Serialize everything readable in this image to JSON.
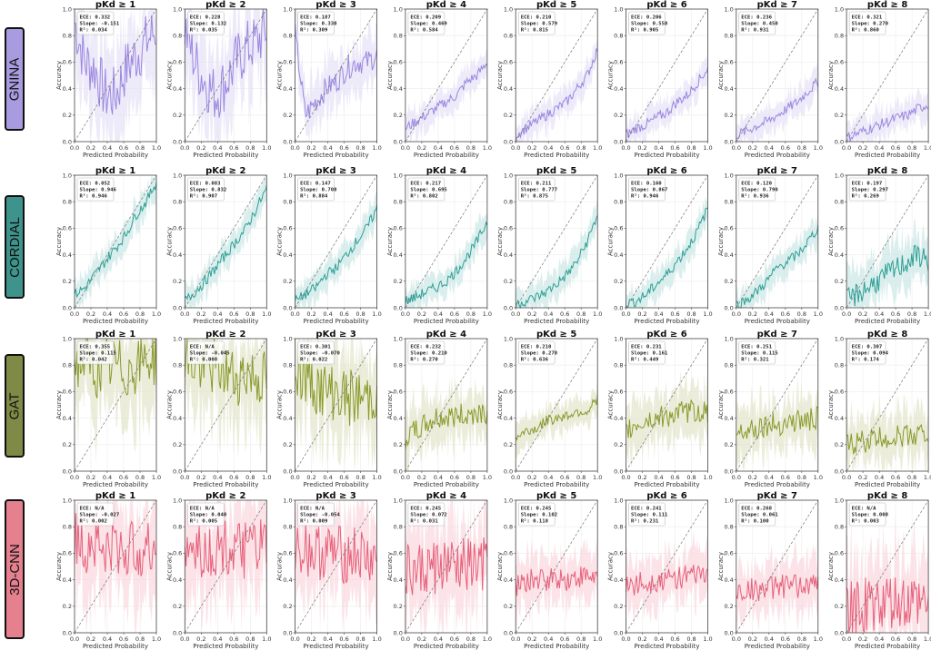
{
  "figure": {
    "xlabel": "Predicted Probability",
    "ylabel": "Accuracy",
    "xticks": [
      "0.0",
      "0.2",
      "0.4",
      "0.6",
      "0.8",
      "1.0"
    ],
    "yticks": [
      "0.0",
      "0.2",
      "0.4",
      "0.6",
      "0.8",
      "1.0"
    ],
    "columns": [
      "pKd ≥ 1",
      "pKd ≥ 2",
      "pKd ≥ 3",
      "pKd ≥ 4",
      "pKd ≥ 5",
      "pKd ≥ 6",
      "pKd ≥ 7",
      "pKd ≥ 8"
    ]
  },
  "rows": [
    {
      "model": "GNINA",
      "color": "#9b87e0",
      "label_bg": "#a99be0"
    },
    {
      "model": "CORDIAL",
      "color": "#2c9f95",
      "label_bg": "#3e948c"
    },
    {
      "model": "GAT",
      "color": "#8a9a2b",
      "label_bg": "#7e8a45"
    },
    {
      "model": "3D-CNN",
      "color": "#e7607a",
      "label_bg": "#e5808f"
    }
  ],
  "chart_data": {
    "type": "line",
    "description": "Reliability diagrams (accuracy vs predicted probability) per model and pKd threshold, with diagonal reference line and shaded variability band",
    "xlabel": "Predicted Probability",
    "ylabel": "Accuracy",
    "xlim": [
      0,
      1
    ],
    "ylim": [
      0,
      1
    ],
    "grid": true,
    "panels": [
      {
        "model": "GNINA",
        "threshold": "pKd ≥ 1",
        "ECE": "0.332",
        "Slope": "-0.151",
        "R2": "0.034",
        "trend": [
          0.9,
          0.6,
          0.55,
          0.35,
          0.35,
          0.55,
          0.65,
          0.75,
          0.85
        ]
      },
      {
        "model": "GNINA",
        "threshold": "pKd ≥ 2",
        "ECE": "0.228",
        "Slope": "0.132",
        "R2": "0.035",
        "trend": [
          0.85,
          0.6,
          0.45,
          0.35,
          0.45,
          0.6,
          0.7,
          0.75,
          0.85
        ]
      },
      {
        "model": "GNINA",
        "threshold": "pKd ≥ 3",
        "ECE": "0.187",
        "Slope": "0.330",
        "R2": "0.309",
        "trend": [
          0.8,
          0.2,
          0.3,
          0.4,
          0.45,
          0.55,
          0.6,
          0.6,
          0.65
        ]
      },
      {
        "model": "GNINA",
        "threshold": "pKd ≥ 4",
        "ECE": "0.209",
        "Slope": "0.469",
        "R2": "0.584",
        "trend": [
          0.1,
          0.15,
          0.2,
          0.25,
          0.3,
          0.35,
          0.45,
          0.5,
          0.6
        ]
      },
      {
        "model": "GNINA",
        "threshold": "pKd ≥ 5",
        "ECE": "0.210",
        "Slope": "0.579",
        "R2": "0.815",
        "trend": [
          0.05,
          0.1,
          0.15,
          0.2,
          0.25,
          0.3,
          0.4,
          0.5,
          0.7
        ]
      },
      {
        "model": "GNINA",
        "threshold": "pKd ≥ 6",
        "ECE": "0.206",
        "Slope": "0.558",
        "R2": "0.905",
        "trend": [
          0.05,
          0.1,
          0.13,
          0.18,
          0.22,
          0.3,
          0.35,
          0.45,
          0.55
        ]
      },
      {
        "model": "GNINA",
        "threshold": "pKd ≥ 7",
        "ECE": "0.236",
        "Slope": "0.450",
        "R2": "0.931",
        "trend": [
          0.05,
          0.08,
          0.12,
          0.15,
          0.2,
          0.25,
          0.3,
          0.38,
          0.45
        ]
      },
      {
        "model": "GNINA",
        "threshold": "pKd ≥ 8",
        "ECE": "0.321",
        "Slope": "0.270",
        "R2": "0.860",
        "trend": [
          0.03,
          0.06,
          0.09,
          0.12,
          0.15,
          0.18,
          0.2,
          0.25,
          0.28
        ]
      },
      {
        "model": "CORDIAL",
        "threshold": "pKd ≥ 1",
        "ECE": "0.052",
        "Slope": "0.946",
        "R2": "0.946",
        "trend": [
          0.1,
          0.15,
          0.25,
          0.35,
          0.45,
          0.55,
          0.7,
          0.8,
          0.95
        ]
      },
      {
        "model": "CORDIAL",
        "threshold": "pKd ≥ 2",
        "ECE": "0.083",
        "Slope": "0.832",
        "R2": "0.907",
        "trend": [
          0.05,
          0.12,
          0.2,
          0.3,
          0.4,
          0.5,
          0.6,
          0.75,
          0.9
        ]
      },
      {
        "model": "CORDIAL",
        "threshold": "pKd ≥ 3",
        "ECE": "0.147",
        "Slope": "0.708",
        "R2": "0.884",
        "trend": [
          0.05,
          0.1,
          0.15,
          0.25,
          0.3,
          0.4,
          0.5,
          0.6,
          0.75
        ]
      },
      {
        "model": "CORDIAL",
        "threshold": "pKd ≥ 4",
        "ECE": "0.217",
        "Slope": "0.695",
        "R2": "0.802",
        "trend": [
          0.05,
          0.08,
          0.12,
          0.15,
          0.2,
          0.28,
          0.38,
          0.5,
          0.65
        ]
      },
      {
        "model": "CORDIAL",
        "threshold": "pKd ≥ 5",
        "ECE": "0.211",
        "Slope": "0.777",
        "R2": "0.875",
        "trend": [
          0.03,
          0.05,
          0.08,
          0.12,
          0.18,
          0.25,
          0.35,
          0.5,
          0.7
        ]
      },
      {
        "model": "CORDIAL",
        "threshold": "pKd ≥ 6",
        "ECE": "0.160",
        "Slope": "0.867",
        "R2": "0.946",
        "trend": [
          0.03,
          0.05,
          0.1,
          0.18,
          0.25,
          0.35,
          0.45,
          0.58,
          0.75
        ]
      },
      {
        "model": "CORDIAL",
        "threshold": "pKd ≥ 7",
        "ECE": "0.120",
        "Slope": "0.790",
        "R2": "0.936",
        "trend": [
          0.02,
          0.06,
          0.12,
          0.2,
          0.3,
          0.35,
          0.4,
          0.5,
          0.6
        ]
      },
      {
        "model": "CORDIAL",
        "threshold": "pKd ≥ 8",
        "ECE": "0.197",
        "Slope": "0.297",
        "R2": "0.269",
        "trend": [
          0.05,
          0.1,
          0.15,
          0.2,
          0.25,
          0.3,
          0.35,
          0.4,
          0.35
        ]
      },
      {
        "model": "GAT",
        "threshold": "pKd ≥ 1",
        "ECE": "0.355",
        "Slope": "0.115",
        "R2": "0.042",
        "trend": [
          0.8,
          0.85,
          0.75,
          0.8,
          0.8,
          0.75,
          0.8,
          0.85,
          0.85
        ]
      },
      {
        "model": "GAT",
        "threshold": "pKd ≥ 2",
        "ECE": "N/A",
        "Slope": "-0.045",
        "R2": "0.008",
        "trend": [
          0.85,
          0.8,
          0.75,
          0.8,
          0.75,
          0.7,
          0.75,
          0.7,
          0.7
        ]
      },
      {
        "model": "GAT",
        "threshold": "pKd ≥ 3",
        "ECE": "0.301",
        "Slope": "-0.070",
        "R2": "0.022",
        "trend": [
          0.75,
          0.7,
          0.65,
          0.6,
          0.6,
          0.55,
          0.55,
          0.55,
          0.6
        ]
      },
      {
        "model": "GAT",
        "threshold": "pKd ≥ 4",
        "ECE": "0.232",
        "Slope": "0.210",
        "R2": "0.270",
        "trend": [
          0.25,
          0.3,
          0.35,
          0.4,
          0.4,
          0.42,
          0.42,
          0.45,
          0.45
        ]
      },
      {
        "model": "GAT",
        "threshold": "pKd ≥ 5",
        "ECE": "0.210",
        "Slope": "0.278",
        "R2": "0.636",
        "trend": [
          0.25,
          0.3,
          0.32,
          0.38,
          0.4,
          0.42,
          0.45,
          0.45,
          0.55
        ]
      },
      {
        "model": "GAT",
        "threshold": "pKd ≥ 6",
        "ECE": "0.231",
        "Slope": "0.161",
        "R2": "0.449",
        "trend": [
          0.3,
          0.35,
          0.38,
          0.4,
          0.42,
          0.43,
          0.45,
          0.45,
          0.45
        ]
      },
      {
        "model": "GAT",
        "threshold": "pKd ≥ 7",
        "ECE": "0.251",
        "Slope": "0.115",
        "R2": "0.321",
        "trend": [
          0.3,
          0.32,
          0.33,
          0.35,
          0.35,
          0.37,
          0.38,
          0.38,
          0.4
        ]
      },
      {
        "model": "GAT",
        "threshold": "pKd ≥ 8",
        "ECE": "0.307",
        "Slope": "0.094",
        "R2": "0.174",
        "trend": [
          0.2,
          0.22,
          0.23,
          0.25,
          0.25,
          0.26,
          0.27,
          0.28,
          0.28
        ]
      },
      {
        "model": "3D-CNN",
        "threshold": "pKd ≥ 1",
        "ECE": "N/A",
        "Slope": "-0.027",
        "R2": "0.002",
        "trend": [
          0.7,
          0.65,
          0.7,
          0.6,
          0.65,
          0.6,
          0.65,
          0.6,
          0.65
        ]
      },
      {
        "model": "3D-CNN",
        "threshold": "pKd ≥ 2",
        "ECE": "N/A",
        "Slope": "0.040",
        "R2": "0.005",
        "trend": [
          0.6,
          0.65,
          0.6,
          0.62,
          0.65,
          0.6,
          0.62,
          0.65,
          0.63
        ]
      },
      {
        "model": "3D-CNN",
        "threshold": "pKd ≥ 3",
        "ECE": "N/A",
        "Slope": "-0.054",
        "R2": "0.009",
        "trend": [
          0.65,
          0.65,
          0.6,
          0.62,
          0.6,
          0.58,
          0.6,
          0.55,
          0.55
        ]
      },
      {
        "model": "3D-CNN",
        "threshold": "pKd ≥ 4",
        "ECE": "0.245",
        "Slope": "0.072",
        "R2": "0.031",
        "trend": [
          0.45,
          0.45,
          0.48,
          0.5,
          0.5,
          0.48,
          0.5,
          0.5,
          0.5
        ]
      },
      {
        "model": "3D-CNN",
        "threshold": "pKd ≥ 5",
        "ECE": "0.245",
        "Slope": "0.102",
        "R2": "0.118",
        "trend": [
          0.35,
          0.38,
          0.4,
          0.4,
          0.42,
          0.4,
          0.42,
          0.42,
          0.42
        ]
      },
      {
        "model": "3D-CNN",
        "threshold": "pKd ≥ 6",
        "ECE": "0.241",
        "Slope": "0.111",
        "R2": "0.231",
        "trend": [
          0.35,
          0.37,
          0.38,
          0.4,
          0.4,
          0.42,
          0.42,
          0.43,
          0.45
        ]
      },
      {
        "model": "3D-CNN",
        "threshold": "pKd ≥ 7",
        "ECE": "0.268",
        "Slope": "0.061",
        "R2": "0.100",
        "trend": [
          0.3,
          0.32,
          0.33,
          0.33,
          0.35,
          0.35,
          0.35,
          0.36,
          0.36
        ]
      },
      {
        "model": "3D-CNN",
        "threshold": "pKd ≥ 8",
        "ECE": "N/A",
        "Slope": "0.008",
        "R2": "0.003",
        "trend": [
          0.18,
          0.18,
          0.2,
          0.2,
          0.2,
          0.2,
          0.2,
          0.2,
          0.2
        ]
      }
    ]
  }
}
